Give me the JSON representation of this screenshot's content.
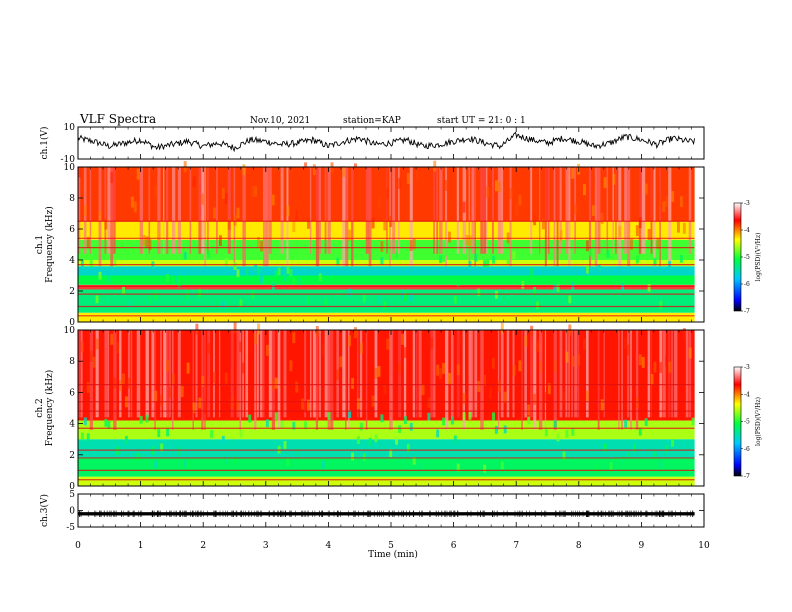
{
  "header": {
    "title": "VLF Spectra",
    "date": "Nov.10, 2021",
    "station": "station=KAP",
    "start_ut": "start  UT =   21: 0  : 1"
  },
  "chart_data": [
    {
      "id": "ch1-waveform",
      "type": "line",
      "ylabel": "ch.1(V)",
      "ylim": [
        -10,
        10
      ],
      "yticks": [
        "10",
        "-10"
      ],
      "xlim": [
        0,
        10
      ],
      "data_end_min": 9.85,
      "trace_min_values": [
        0.0,
        0.25,
        0.5,
        0.75,
        1.0,
        1.25,
        1.5,
        1.75,
        2.0,
        2.25,
        2.5,
        2.75,
        3.0,
        3.25,
        3.5,
        3.75,
        4.0,
        4.25,
        4.5,
        4.75,
        5.0,
        5.25,
        5.5,
        5.75,
        6.0,
        6.25,
        6.5,
        6.75,
        7.0,
        7.25,
        7.5,
        7.75,
        8.0,
        8.25,
        8.5,
        8.75,
        9.0,
        9.25,
        9.5,
        9.75
      ],
      "trace_values": [
        3,
        1,
        -2,
        0,
        2,
        -3,
        -1,
        1,
        -2,
        0,
        -3,
        2,
        1,
        -1,
        0,
        2,
        -2,
        1,
        3,
        -1,
        0,
        2,
        -2,
        -1,
        1,
        3,
        0,
        -2,
        5,
        2,
        0,
        3,
        1,
        -2,
        0,
        4,
        2,
        -1,
        3,
        1
      ]
    },
    {
      "id": "ch1-spectrogram",
      "type": "heatmap",
      "ylabel": "ch.1\nFrequency (kHz)",
      "ylim": [
        0,
        10
      ],
      "yticks": [
        "0",
        "2",
        "4",
        "6",
        "8",
        "10"
      ],
      "xlim": [
        0,
        10
      ],
      "data_end_min": 9.85,
      "z_range": [
        -7,
        -3
      ],
      "bands_khz": [
        {
          "f0": 0.0,
          "f1": 0.6,
          "level": -4.3
        },
        {
          "f0": 0.6,
          "f1": 2.1,
          "level": -5.3
        },
        {
          "f0": 2.1,
          "f1": 2.4,
          "level": -3.5
        },
        {
          "f0": 2.4,
          "f1": 3.0,
          "level": -5.1
        },
        {
          "f0": 3.0,
          "f1": 3.6,
          "level": -5.6
        },
        {
          "f0": 3.6,
          "f1": 4.0,
          "level": -4.5
        },
        {
          "f0": 4.0,
          "f1": 5.3,
          "level": -4.9
        },
        {
          "f0": 5.3,
          "f1": 6.5,
          "level": -4.3
        },
        {
          "f0": 6.5,
          "f1": 10.0,
          "level": -3.8
        }
      ],
      "colorbar": {
        "label": "log(PSD)(V²/Hz)",
        "ticks": [
          "-3",
          "-4",
          "-5",
          "-6",
          "-7"
        ]
      }
    },
    {
      "id": "ch2-spectrogram",
      "type": "heatmap",
      "ylabel": "ch.2\nFrequency (kHz)",
      "ylim": [
        0,
        10
      ],
      "yticks": [
        "0",
        "2",
        "4",
        "6",
        "8",
        "10"
      ],
      "xlim": [
        0,
        10
      ],
      "data_end_min": 9.85,
      "z_range": [
        -7,
        -3
      ],
      "bands_khz": [
        {
          "f0": 0.0,
          "f1": 0.6,
          "level": -4.5
        },
        {
          "f0": 0.6,
          "f1": 1.8,
          "level": -5.2
        },
        {
          "f0": 1.8,
          "f1": 3.0,
          "level": -5.5
        },
        {
          "f0": 3.0,
          "f1": 4.2,
          "level": -4.6
        },
        {
          "f0": 4.2,
          "f1": 10.0,
          "level": -3.7
        }
      ],
      "colorbar": {
        "label": "log(PSD)(V²/Hz)",
        "ticks": [
          "-3",
          "-4",
          "-5",
          "-6",
          "-7"
        ]
      }
    },
    {
      "id": "ch3-waveform",
      "type": "line",
      "ylabel": "ch.3(V)",
      "ylim": [
        -5,
        5
      ],
      "yticks": [
        "5",
        "0",
        "-5"
      ],
      "xlim": [
        0,
        10
      ],
      "data_end_min": 9.85,
      "trace_level": -1.0,
      "trace_band": [
        -1.5,
        -0.5
      ],
      "xticks": [
        "0",
        "1",
        "2",
        "3",
        "4",
        "5",
        "6",
        "7",
        "8",
        "9",
        "10"
      ],
      "xlabel": "Time (min)"
    }
  ]
}
